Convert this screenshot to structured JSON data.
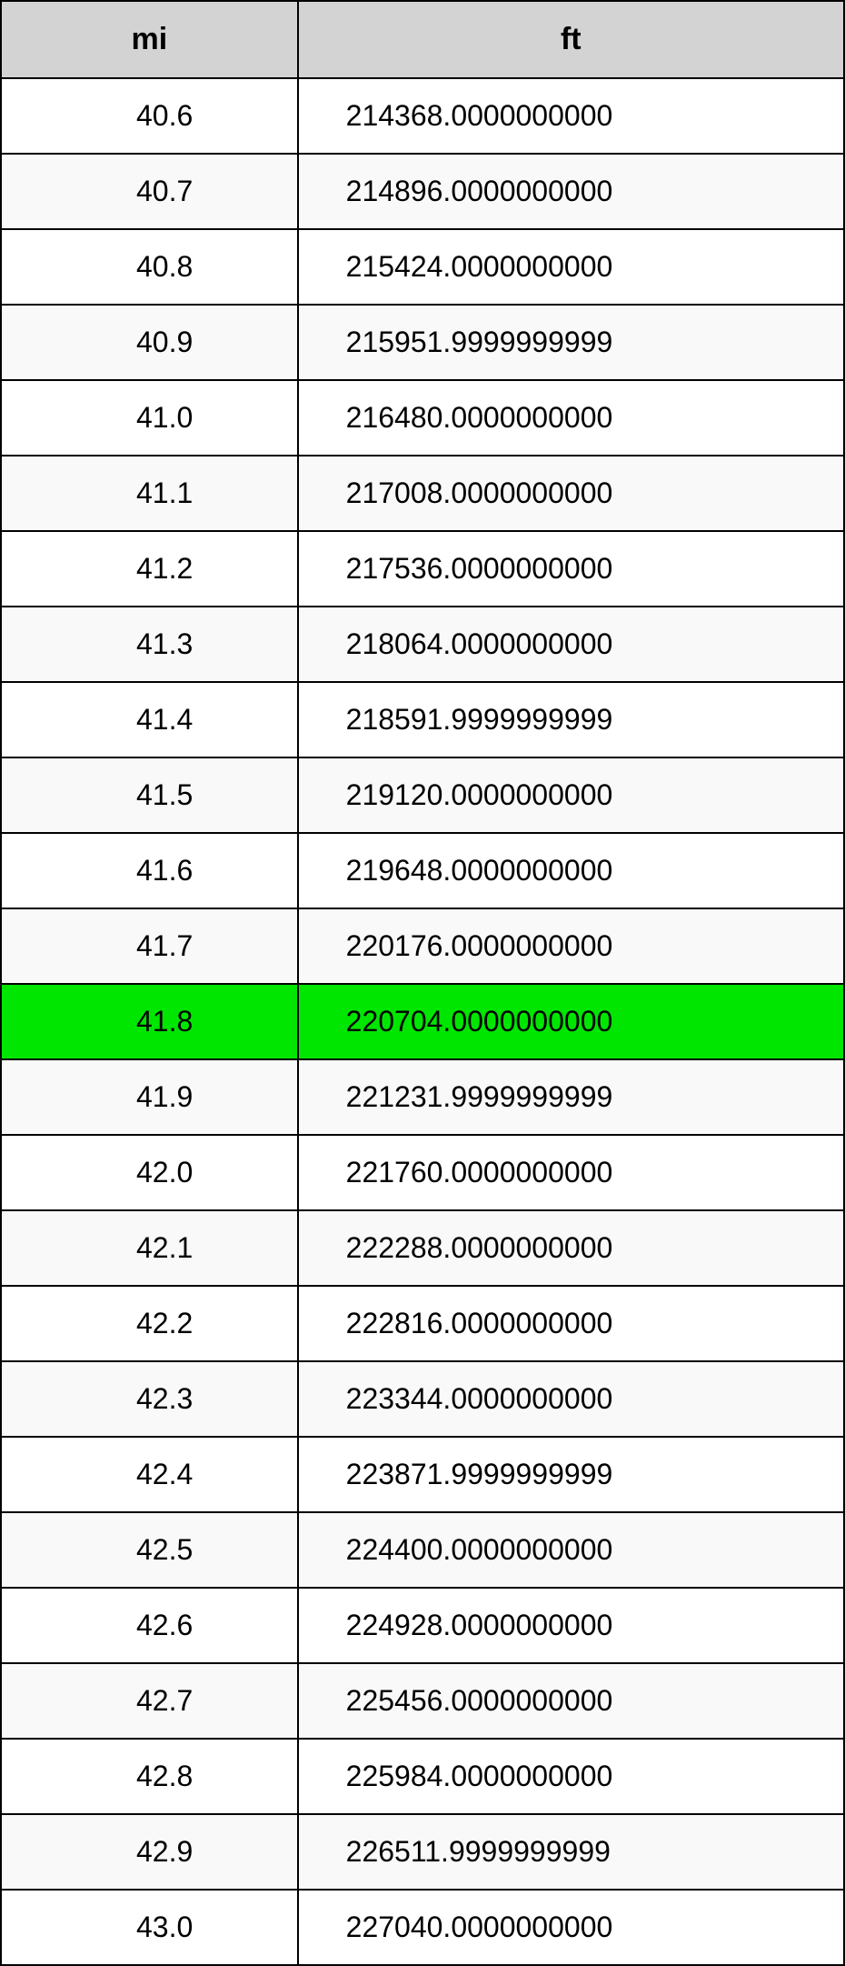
{
  "table": {
    "columns": [
      "mi",
      "ft"
    ],
    "column_widths_pct": [
      35.2,
      64.8
    ],
    "header_bg": "#d3d3d3",
    "border_color": "#000000",
    "row_bg_odd": "#ffffff",
    "row_bg_even": "#f9f9f9",
    "highlight_bg": "#00e600",
    "header_fontsize": 34,
    "cell_fontsize": 32,
    "text_color": "#000000",
    "rows": [
      {
        "mi": "40.6",
        "ft": "214368.0000000000",
        "highlight": false
      },
      {
        "mi": "40.7",
        "ft": "214896.0000000000",
        "highlight": false
      },
      {
        "mi": "40.8",
        "ft": "215424.0000000000",
        "highlight": false
      },
      {
        "mi": "40.9",
        "ft": "215951.9999999999",
        "highlight": false
      },
      {
        "mi": "41.0",
        "ft": "216480.0000000000",
        "highlight": false
      },
      {
        "mi": "41.1",
        "ft": "217008.0000000000",
        "highlight": false
      },
      {
        "mi": "41.2",
        "ft": "217536.0000000000",
        "highlight": false
      },
      {
        "mi": "41.3",
        "ft": "218064.0000000000",
        "highlight": false
      },
      {
        "mi": "41.4",
        "ft": "218591.9999999999",
        "highlight": false
      },
      {
        "mi": "41.5",
        "ft": "219120.0000000000",
        "highlight": false
      },
      {
        "mi": "41.6",
        "ft": "219648.0000000000",
        "highlight": false
      },
      {
        "mi": "41.7",
        "ft": "220176.0000000000",
        "highlight": false
      },
      {
        "mi": "41.8",
        "ft": "220704.0000000000",
        "highlight": true
      },
      {
        "mi": "41.9",
        "ft": "221231.9999999999",
        "highlight": false
      },
      {
        "mi": "42.0",
        "ft": "221760.0000000000",
        "highlight": false
      },
      {
        "mi": "42.1",
        "ft": "222288.0000000000",
        "highlight": false
      },
      {
        "mi": "42.2",
        "ft": "222816.0000000000",
        "highlight": false
      },
      {
        "mi": "42.3",
        "ft": "223344.0000000000",
        "highlight": false
      },
      {
        "mi": "42.4",
        "ft": "223871.9999999999",
        "highlight": false
      },
      {
        "mi": "42.5",
        "ft": "224400.0000000000",
        "highlight": false
      },
      {
        "mi": "42.6",
        "ft": "224928.0000000000",
        "highlight": false
      },
      {
        "mi": "42.7",
        "ft": "225456.0000000000",
        "highlight": false
      },
      {
        "mi": "42.8",
        "ft": "225984.0000000000",
        "highlight": false
      },
      {
        "mi": "42.9",
        "ft": "226511.9999999999",
        "highlight": false
      },
      {
        "mi": "43.0",
        "ft": "227040.0000000000",
        "highlight": false
      }
    ]
  }
}
